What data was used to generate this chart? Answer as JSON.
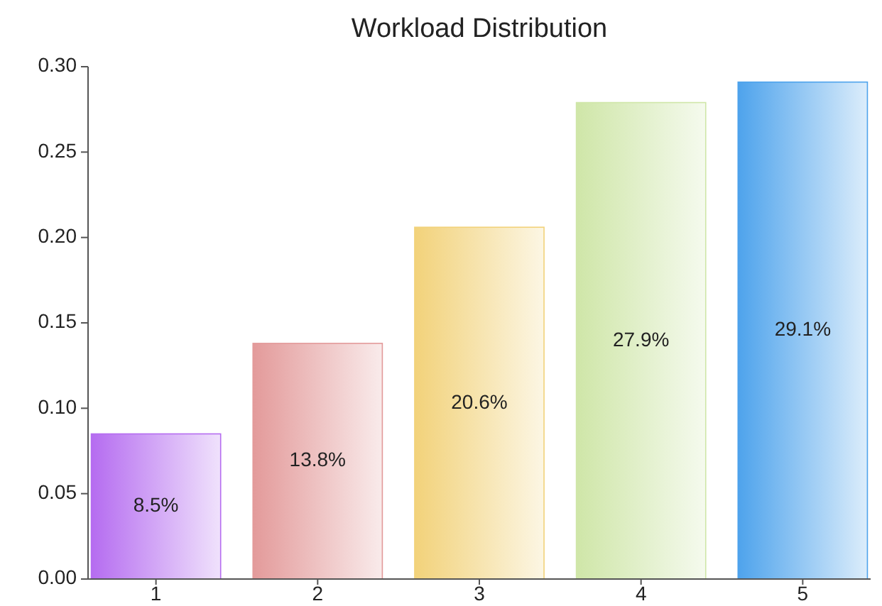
{
  "chart_data": {
    "type": "bar",
    "title": "Workload Distribution",
    "categories": [
      "1",
      "2",
      "3",
      "4",
      "5"
    ],
    "values": [
      0.085,
      0.138,
      0.206,
      0.279,
      0.291
    ],
    "colors": [
      "#b56cf0",
      "#e39a9a",
      "#f2d27a",
      "#cfe6a8",
      "#4ea3ec"
    ],
    "value_labels": [
      "8.5%",
      "13.8%",
      "20.6%",
      "27.9%",
      "29.1%"
    ],
    "ylim": [
      0,
      0.3
    ],
    "yticks": [
      {
        "value": 0,
        "label": "0.00"
      },
      {
        "value": 0.05,
        "label": "0.05"
      },
      {
        "value": 0.1,
        "label": "0.10"
      },
      {
        "value": 0.15,
        "label": "0.15"
      },
      {
        "value": 0.2,
        "label": "0.20"
      },
      {
        "value": 0.25,
        "label": "0.25"
      },
      {
        "value": 0.3,
        "label": "0.30"
      }
    ],
    "grid": false
  }
}
